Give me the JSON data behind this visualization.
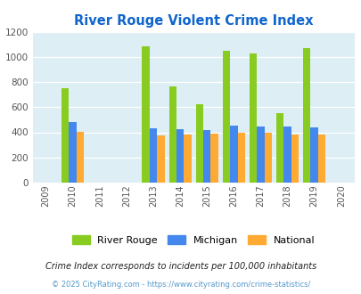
{
  "title": "River Rouge Violent Crime Index",
  "all_years": [
    2009,
    2010,
    2011,
    2012,
    2013,
    2014,
    2015,
    2016,
    2017,
    2018,
    2019,
    2020
  ],
  "data_years": [
    2010,
    2013,
    2014,
    2015,
    2016,
    2017,
    2018,
    2019
  ],
  "river_rouge": [
    750,
    1085,
    770,
    625,
    1055,
    1030,
    550,
    1075
  ],
  "michigan": [
    485,
    432,
    422,
    415,
    455,
    447,
    448,
    440
  ],
  "national": [
    403,
    375,
    383,
    392,
    397,
    397,
    381,
    381
  ],
  "colors": {
    "river_rouge": "#88cc22",
    "michigan": "#4488ee",
    "national": "#ffaa33"
  },
  "ylim": [
    0,
    1200
  ],
  "yticks": [
    0,
    200,
    400,
    600,
    800,
    1000,
    1200
  ],
  "bg_color": "#ddeef5",
  "legend_labels": [
    "River Rouge",
    "Michigan",
    "National"
  ],
  "footnote1": "Crime Index corresponds to incidents per 100,000 inhabitants",
  "footnote2": "© 2025 CityRating.com - https://www.cityrating.com/crime-statistics/",
  "title_color": "#1166cc",
  "footnote1_color": "#222222",
  "footnote2_color": "#5599cc"
}
